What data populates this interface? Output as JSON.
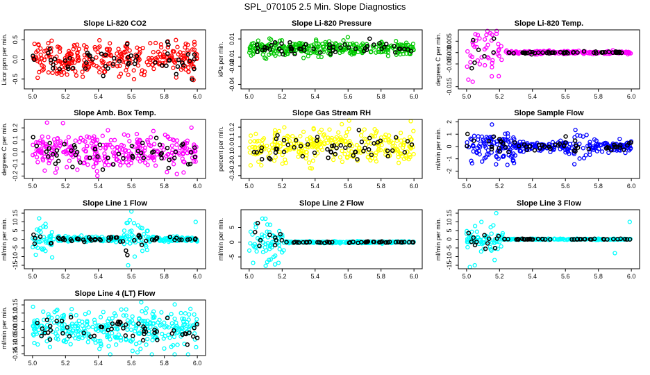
{
  "figure": {
    "title": "SPL_070105  2.5 Min. Slope Diagnostics"
  },
  "chart_data": [
    {
      "type": "scatter",
      "title": "Slope Li-820 CO2",
      "ylabel": "Licor ppm per min.",
      "xlim": [
        4.95,
        6.05
      ],
      "ylim": [
        -0.75,
        0.75
      ],
      "xticks": [
        "5.0",
        "5.2",
        "5.4",
        "5.6",
        "5.8",
        "6.0"
      ],
      "yticks": [
        "-0.5",
        "0.0",
        "0.5"
      ],
      "color": "#ff0000",
      "center": 0.0,
      "spread": 0.22,
      "mode": "uniform",
      "count": 300,
      "black_count": 55,
      "extremes": []
    },
    {
      "type": "scatter",
      "title": "Slope Li-820 Pressure",
      "ylabel": "kPa per min.",
      "xlim": [
        4.95,
        6.05
      ],
      "ylim": [
        -0.045,
        0.02
      ],
      "xticks": [
        "5.0",
        "5.2",
        "5.4",
        "5.6",
        "5.8",
        "6.0"
      ],
      "yticks": [
        "-0.04",
        "-0.02",
        "-0.01",
        "0.01"
      ],
      "color": "#00c800",
      "center": 0.0,
      "spread": 0.004,
      "mode": "uniform",
      "count": 300,
      "black_count": 55,
      "extremes": []
    },
    {
      "type": "scatter",
      "title": "Slope Li-820 Temp.",
      "ylabel": "degrees C per min.",
      "xlim": [
        4.95,
        6.05
      ],
      "ylim": [
        -0.016,
        0.01
      ],
      "xticks": [
        "5.0",
        "5.2",
        "5.4",
        "5.6",
        "5.8",
        "6.0"
      ],
      "yticks": [
        "-0.015",
        "-0.005",
        "0.000",
        "0.005"
      ],
      "color": "#ff00ff",
      "center": 0.0,
      "spread": 0.0025,
      "mode": "early",
      "count": 250,
      "black_count": 55,
      "extremes": []
    },
    {
      "type": "scatter",
      "title": "Slope Amb. Box Temp.",
      "ylabel": "degrees C per min.",
      "xlim": [
        4.95,
        6.05
      ],
      "ylim": [
        -0.22,
        0.27
      ],
      "xticks": [
        "5.0",
        "5.2",
        "5.4",
        "5.6",
        "5.8",
        "6.0"
      ],
      "yticks": [
        "-0.2",
        "-0.1",
        "0.0",
        "0.1",
        "0.2"
      ],
      "color": "#ff00ff",
      "center": 0.0,
      "spread": 0.07,
      "mode": "uniform",
      "count": 300,
      "black_count": 55,
      "extremes": []
    },
    {
      "type": "scatter",
      "title": "Slope Gas Stream RH",
      "ylabel": "percent per min.",
      "xlim": [
        4.95,
        6.05
      ],
      "ylim": [
        -0.33,
        0.28
      ],
      "xticks": [
        "5.0",
        "5.2",
        "5.4",
        "5.6",
        "5.8",
        "6.0"
      ],
      "yticks": [
        "-0.3",
        "-0.2",
        "-0.1",
        "0.0",
        "0.1",
        "0.2"
      ],
      "color": "#ffff00",
      "center": 0.0,
      "spread": 0.09,
      "mode": "uniform",
      "count": 300,
      "black_count": 55,
      "extremes": []
    },
    {
      "type": "scatter",
      "title": "Slope Sample Flow",
      "ylabel": "ml/min per min.",
      "xlim": [
        4.95,
        6.05
      ],
      "ylim": [
        -2.6,
        2.2
      ],
      "xticks": [
        "5.0",
        "5.2",
        "5.4",
        "5.6",
        "5.8",
        "6.0"
      ],
      "yticks": [
        "-2",
        "-1",
        "0",
        "1",
        "2"
      ],
      "color": "#0000ff",
      "center": 0.0,
      "spread": 0.3,
      "mode": "mixed",
      "count": 300,
      "black_count": 55,
      "extremes": []
    },
    {
      "type": "scatter",
      "title": "Slope Line 1 Flow",
      "ylabel": "ml/min per min.",
      "xlim": [
        4.95,
        6.05
      ],
      "ylim": [
        -17,
        17
      ],
      "xticks": [
        "5.0",
        "5.2",
        "5.4",
        "5.6",
        "5.8",
        "6.0"
      ],
      "yticks": [
        "-15",
        "-10",
        "-5",
        "0",
        "5",
        "10",
        "15"
      ],
      "color": "#00ffff",
      "center": 0.0,
      "spread": 1.3,
      "mode": "narrow",
      "count": 280,
      "black_count": 55,
      "extremes": [
        [
          5.02,
          -9
        ],
        [
          5.04,
          12
        ],
        [
          5.06,
          -6
        ],
        [
          5.08,
          7
        ],
        [
          5.58,
          -15
        ],
        [
          5.59,
          11
        ],
        [
          5.6,
          16
        ],
        [
          5.62,
          -10
        ],
        [
          5.64,
          8
        ],
        [
          5.99,
          10
        ]
      ]
    },
    {
      "type": "scatter",
      "title": "Slope Line 2 Flow",
      "ylabel": "ml/min per min.",
      "xlim": [
        4.95,
        6.05
      ],
      "ylim": [
        -9,
        11
      ],
      "xticks": [
        "5.0",
        "5.2",
        "5.4",
        "5.6",
        "5.8",
        "6.0"
      ],
      "yticks": [
        "-5",
        "0",
        "5"
      ],
      "color": "#00ffff",
      "center": 0.0,
      "spread": 1.2,
      "mode": "early",
      "count": 280,
      "black_count": 55,
      "extremes": [
        [
          5.08,
          8
        ],
        [
          5.1,
          -8
        ],
        [
          5.12,
          -6
        ],
        [
          5.11,
          6
        ]
      ]
    },
    {
      "type": "scatter",
      "title": "Slope Line 3 Flow",
      "ylabel": "ml/min per min.",
      "xlim": [
        4.95,
        6.05
      ],
      "ylim": [
        -17,
        17
      ],
      "xticks": [
        "5.0",
        "5.2",
        "5.4",
        "5.6",
        "5.8",
        "6.0"
      ],
      "yticks": [
        "-15",
        "-10",
        "-5",
        "0",
        "5",
        "10",
        "15"
      ],
      "color": "#00ffff",
      "center": 0.0,
      "spread": 1.3,
      "mode": "early",
      "count": 280,
      "black_count": 55,
      "extremes": [
        [
          5.02,
          -16
        ],
        [
          5.05,
          -15
        ],
        [
          5.09,
          10
        ],
        [
          5.17,
          -12
        ],
        [
          5.18,
          15
        ],
        [
          5.9,
          -8
        ],
        [
          5.99,
          10
        ]
      ]
    },
    {
      "type": "scatter",
      "title": "Slope Line 4 (LT) Flow",
      "ylabel": "ml/min per min.",
      "xlim": [
        4.95,
        6.05
      ],
      "ylim": [
        -0.16,
        0.18
      ],
      "xticks": [
        "5.0",
        "5.2",
        "5.4",
        "5.6",
        "5.8",
        "6.0"
      ],
      "yticks": [
        "-0.15",
        "-0.10",
        "-0.05",
        "0.00",
        "0.05",
        "0.10",
        "0.15"
      ],
      "color": "#00ffff",
      "center": 0.0,
      "spread": 0.055,
      "mode": "uniform",
      "count": 320,
      "black_count": 55,
      "extremes": []
    }
  ]
}
